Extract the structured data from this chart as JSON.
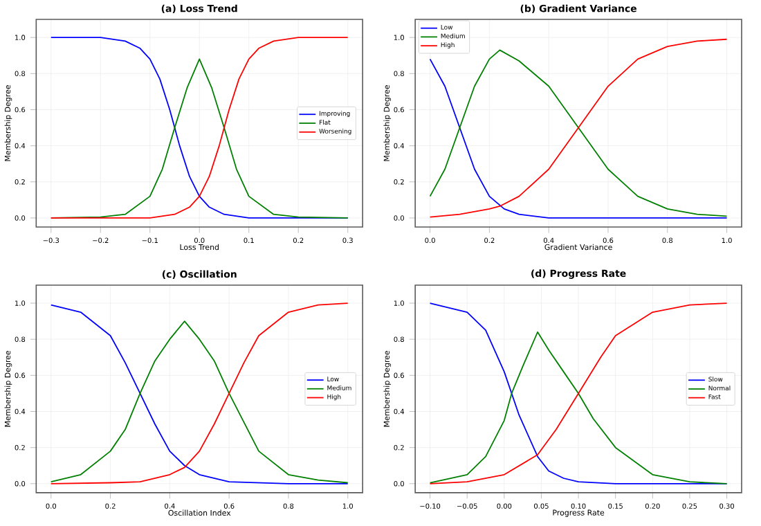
{
  "chart_data": [
    {
      "type": "line",
      "title": "(a) Loss Trend",
      "xlabel": "Loss Trend",
      "ylabel": "Membership Degree",
      "xlim": [
        -0.33,
        0.33
      ],
      "ylim": [
        -0.05,
        1.1
      ],
      "xticks": [
        {
          "value": -0.3,
          "label": "−0.3"
        },
        {
          "value": -0.2,
          "label": "−0.2"
        },
        {
          "value": -0.1,
          "label": "−0.1"
        },
        {
          "value": 0,
          "label": "0.0"
        },
        {
          "value": 0.1,
          "label": "0.1"
        },
        {
          "value": 0.2,
          "label": "0.2"
        },
        {
          "value": 0.3,
          "label": "0.3"
        }
      ],
      "yticks": [
        {
          "value": 0,
          "label": "0.0"
        },
        {
          "value": 0.2,
          "label": "0.2"
        },
        {
          "value": 0.4,
          "label": "0.4"
        },
        {
          "value": 0.6,
          "label": "0.6"
        },
        {
          "value": 0.8,
          "label": "0.8"
        },
        {
          "value": 1,
          "label": "1.0"
        }
      ],
      "grid": true,
      "legend": "center right",
      "marker": "none",
      "line_style": "solid",
      "series": [
        {
          "name": "Improving",
          "color": "#0000ff",
          "x": [
            -0.3,
            -0.2,
            -0.15,
            -0.12,
            -0.1,
            -0.08,
            -0.06,
            -0.05,
            -0.04,
            -0.02,
            0,
            0.02,
            0.05,
            0.1,
            0.15,
            0.2,
            0.3
          ],
          "values": [
            1.0,
            1.0,
            0.98,
            0.94,
            0.88,
            0.77,
            0.6,
            0.5,
            0.4,
            0.23,
            0.12,
            0.06,
            0.02,
            0.0,
            0.0,
            0.0,
            0.0
          ]
        },
        {
          "name": "Flat",
          "color": "#008000",
          "x": [
            -0.3,
            -0.2,
            -0.15,
            -0.1,
            -0.075,
            -0.05,
            -0.025,
            0,
            0.025,
            0.05,
            0.075,
            0.1,
            0.15,
            0.2,
            0.3
          ],
          "values": [
            0.0,
            0.005,
            0.02,
            0.12,
            0.27,
            0.5,
            0.72,
            0.88,
            0.72,
            0.5,
            0.27,
            0.12,
            0.02,
            0.005,
            0.0
          ]
        },
        {
          "name": "Worsening",
          "color": "#ff0000",
          "x": [
            -0.3,
            -0.2,
            -0.15,
            -0.1,
            -0.05,
            -0.02,
            0,
            0.02,
            0.04,
            0.05,
            0.06,
            0.08,
            0.1,
            0.12,
            0.15,
            0.2,
            0.3
          ],
          "values": [
            0.0,
            0.0,
            0.0,
            0.0,
            0.02,
            0.06,
            0.12,
            0.23,
            0.4,
            0.5,
            0.6,
            0.77,
            0.88,
            0.94,
            0.98,
            1.0,
            1.0
          ]
        }
      ]
    },
    {
      "type": "line",
      "title": "(b) Gradient Variance",
      "xlabel": "Gradient Variance",
      "ylabel": "Membership Degree",
      "xlim": [
        -0.05,
        1.05
      ],
      "ylim": [
        -0.05,
        1.1
      ],
      "xticks": [
        {
          "value": 0,
          "label": "0.0"
        },
        {
          "value": 0.2,
          "label": "0.2"
        },
        {
          "value": 0.4,
          "label": "0.4"
        },
        {
          "value": 0.6,
          "label": "0.6"
        },
        {
          "value": 0.8,
          "label": "0.8"
        },
        {
          "value": 1,
          "label": "1.0"
        }
      ],
      "yticks": [
        {
          "value": 0,
          "label": "0.0"
        },
        {
          "value": 0.2,
          "label": "0.2"
        },
        {
          "value": 0.4,
          "label": "0.4"
        },
        {
          "value": 0.6,
          "label": "0.6"
        },
        {
          "value": 0.8,
          "label": "0.8"
        },
        {
          "value": 1,
          "label": "1.0"
        }
      ],
      "grid": true,
      "legend": "top left",
      "marker": "none",
      "line_style": "solid",
      "series": [
        {
          "name": "Low",
          "color": "#0000ff",
          "x": [
            0,
            0.05,
            0.1,
            0.15,
            0.2,
            0.25,
            0.3,
            0.4,
            0.6,
            0.8,
            1.0
          ],
          "values": [
            0.88,
            0.73,
            0.5,
            0.27,
            0.12,
            0.05,
            0.02,
            0.0,
            0.0,
            0.0,
            0.0
          ]
        },
        {
          "name": "Medium",
          "color": "#008000",
          "x": [
            0,
            0.05,
            0.1,
            0.15,
            0.2,
            0.235,
            0.3,
            0.4,
            0.5,
            0.6,
            0.7,
            0.8,
            0.9,
            1.0
          ],
          "values": [
            0.12,
            0.27,
            0.5,
            0.73,
            0.88,
            0.93,
            0.87,
            0.73,
            0.5,
            0.27,
            0.12,
            0.05,
            0.02,
            0.01
          ]
        },
        {
          "name": "High",
          "color": "#ff0000",
          "x": [
            0,
            0.1,
            0.2,
            0.235,
            0.3,
            0.4,
            0.5,
            0.6,
            0.7,
            0.8,
            0.9,
            1.0
          ],
          "values": [
            0.005,
            0.02,
            0.05,
            0.065,
            0.12,
            0.27,
            0.5,
            0.73,
            0.88,
            0.95,
            0.98,
            0.99
          ]
        }
      ]
    },
    {
      "type": "line",
      "title": "(c) Oscillation",
      "xlabel": "Oscillation Index",
      "ylabel": "Membership Degree",
      "xlim": [
        -0.05,
        1.05
      ],
      "ylim": [
        -0.05,
        1.1
      ],
      "xticks": [
        {
          "value": 0,
          "label": "0.0"
        },
        {
          "value": 0.2,
          "label": "0.2"
        },
        {
          "value": 0.4,
          "label": "0.4"
        },
        {
          "value": 0.6,
          "label": "0.6"
        },
        {
          "value": 0.8,
          "label": "0.8"
        },
        {
          "value": 1,
          "label": "1.0"
        }
      ],
      "yticks": [
        {
          "value": 0,
          "label": "0.0"
        },
        {
          "value": 0.2,
          "label": "0.2"
        },
        {
          "value": 0.4,
          "label": "0.4"
        },
        {
          "value": 0.6,
          "label": "0.6"
        },
        {
          "value": 0.8,
          "label": "0.8"
        },
        {
          "value": 1,
          "label": "1.0"
        }
      ],
      "grid": true,
      "legend": "center right",
      "marker": "none",
      "line_style": "solid",
      "series": [
        {
          "name": "Low",
          "color": "#0000ff",
          "x": [
            0,
            0.1,
            0.2,
            0.25,
            0.3,
            0.35,
            0.4,
            0.45,
            0.5,
            0.6,
            0.8,
            1.0
          ],
          "values": [
            0.99,
            0.95,
            0.82,
            0.67,
            0.5,
            0.33,
            0.18,
            0.1,
            0.05,
            0.01,
            0.0,
            0.0
          ]
        },
        {
          "name": "Medium",
          "color": "#008000",
          "x": [
            0,
            0.1,
            0.2,
            0.25,
            0.3,
            0.35,
            0.4,
            0.45,
            0.5,
            0.55,
            0.6,
            0.7,
            0.8,
            0.9,
            1.0
          ],
          "values": [
            0.01,
            0.05,
            0.18,
            0.3,
            0.5,
            0.68,
            0.8,
            0.9,
            0.8,
            0.68,
            0.5,
            0.18,
            0.05,
            0.02,
            0.005
          ]
        },
        {
          "name": "High",
          "color": "#ff0000",
          "x": [
            0,
            0.2,
            0.3,
            0.4,
            0.45,
            0.5,
            0.55,
            0.6,
            0.65,
            0.7,
            0.8,
            0.9,
            1.0
          ],
          "values": [
            0.0,
            0.005,
            0.01,
            0.05,
            0.09,
            0.18,
            0.33,
            0.5,
            0.67,
            0.82,
            0.95,
            0.99,
            1.0
          ]
        }
      ]
    },
    {
      "type": "line",
      "title": "(d) Progress Rate",
      "xlabel": "Progress Rate",
      "ylabel": "Membership Degree",
      "xlim": [
        -0.12,
        0.32
      ],
      "ylim": [
        -0.05,
        1.1
      ],
      "xticks": [
        {
          "value": -0.1,
          "label": "−0.10"
        },
        {
          "value": -0.05,
          "label": "−0.05"
        },
        {
          "value": 0,
          "label": "0.00"
        },
        {
          "value": 0.05,
          "label": "0.05"
        },
        {
          "value": 0.1,
          "label": "0.10"
        },
        {
          "value": 0.15,
          "label": "0.15"
        },
        {
          "value": 0.2,
          "label": "0.20"
        },
        {
          "value": 0.25,
          "label": "0.25"
        },
        {
          "value": 0.3,
          "label": "0.30"
        }
      ],
      "yticks": [
        {
          "value": 0,
          "label": "0.0"
        },
        {
          "value": 0.2,
          "label": "0.2"
        },
        {
          "value": 0.4,
          "label": "0.4"
        },
        {
          "value": 0.6,
          "label": "0.6"
        },
        {
          "value": 0.8,
          "label": "0.8"
        },
        {
          "value": 1,
          "label": "1.0"
        }
      ],
      "grid": true,
      "legend": "center right",
      "marker": "none",
      "line_style": "solid",
      "series": [
        {
          "name": "Slow",
          "color": "#0000ff",
          "x": [
            -0.1,
            -0.05,
            -0.025,
            0,
            0.01,
            0.02,
            0.045,
            0.06,
            0.08,
            0.1,
            0.15,
            0.3
          ],
          "values": [
            1.0,
            0.95,
            0.85,
            0.62,
            0.5,
            0.38,
            0.15,
            0.07,
            0.03,
            0.01,
            0.0,
            0.0
          ]
        },
        {
          "name": "Normal",
          "color": "#008000",
          "x": [
            -0.1,
            -0.05,
            -0.025,
            0,
            0.01,
            0.025,
            0.045,
            0.06,
            0.08,
            0.1,
            0.12,
            0.15,
            0.2,
            0.25,
            0.3
          ],
          "values": [
            0.005,
            0.05,
            0.15,
            0.35,
            0.5,
            0.65,
            0.84,
            0.74,
            0.62,
            0.5,
            0.36,
            0.2,
            0.05,
            0.01,
            0.0
          ]
        },
        {
          "name": "Fast",
          "color": "#ff0000",
          "x": [
            -0.1,
            -0.05,
            0,
            0.045,
            0.07,
            0.1,
            0.13,
            0.15,
            0.2,
            0.25,
            0.3
          ],
          "values": [
            0.0,
            0.01,
            0.05,
            0.16,
            0.3,
            0.5,
            0.7,
            0.82,
            0.95,
            0.99,
            1.0
          ]
        }
      ]
    }
  ]
}
